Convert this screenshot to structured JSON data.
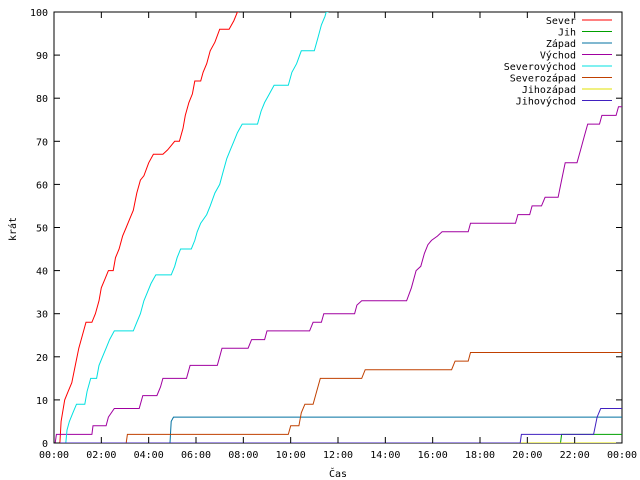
{
  "chart_data": {
    "type": "line",
    "xlabel": "Čas",
    "ylabel": "krát",
    "xlim": [
      0,
      24
    ],
    "ylim": [
      0,
      100
    ],
    "x_ticks": [
      "00:00",
      "02:00",
      "04:00",
      "06:00",
      "08:00",
      "10:00",
      "12:00",
      "14:00",
      "16:00",
      "18:00",
      "20:00",
      "22:00",
      "00:00"
    ],
    "y_ticks": [
      0,
      10,
      20,
      30,
      40,
      50,
      60,
      70,
      80,
      90,
      100
    ],
    "grid": false,
    "legend_position": "top-right",
    "series": [
      {
        "name": "Sever",
        "color": "#ff0000",
        "points": [
          [
            0,
            0
          ],
          [
            0.25,
            0
          ],
          [
            0.3,
            5
          ],
          [
            0.45,
            10
          ],
          [
            0.6,
            12
          ],
          [
            0.75,
            14
          ],
          [
            0.9,
            18
          ],
          [
            1.05,
            22
          ],
          [
            1.2,
            25
          ],
          [
            1.35,
            28
          ],
          [
            1.6,
            28
          ],
          [
            1.75,
            30
          ],
          [
            1.9,
            33
          ],
          [
            2.0,
            36
          ],
          [
            2.15,
            38
          ],
          [
            2.3,
            40
          ],
          [
            2.5,
            40
          ],
          [
            2.6,
            43
          ],
          [
            2.75,
            45
          ],
          [
            2.9,
            48
          ],
          [
            3.05,
            50
          ],
          [
            3.2,
            52
          ],
          [
            3.35,
            54
          ],
          [
            3.5,
            58
          ],
          [
            3.65,
            61
          ],
          [
            3.8,
            62
          ],
          [
            4.0,
            65
          ],
          [
            4.2,
            67
          ],
          [
            4.6,
            67
          ],
          [
            4.8,
            68
          ],
          [
            4.95,
            69
          ],
          [
            5.1,
            70
          ],
          [
            5.3,
            70
          ],
          [
            5.45,
            73
          ],
          [
            5.55,
            76
          ],
          [
            5.7,
            79
          ],
          [
            5.85,
            81
          ],
          [
            5.95,
            84
          ],
          [
            6.2,
            84
          ],
          [
            6.3,
            86
          ],
          [
            6.45,
            88
          ],
          [
            6.6,
            91
          ],
          [
            6.8,
            93
          ],
          [
            7.0,
            96
          ],
          [
            7.4,
            96
          ],
          [
            7.6,
            98
          ],
          [
            7.75,
            100
          ],
          [
            7.8,
            100
          ]
        ]
      },
      {
        "name": "Jih",
        "color": "#00a000",
        "points": [
          [
            0,
            0
          ],
          [
            21.4,
            0
          ],
          [
            21.45,
            2
          ],
          [
            24,
            2
          ]
        ]
      },
      {
        "name": "Západ",
        "color": "#0070a0",
        "points": [
          [
            0,
            0
          ],
          [
            4.9,
            0
          ],
          [
            4.95,
            5
          ],
          [
            5.05,
            6
          ],
          [
            24,
            6
          ]
        ]
      },
      {
        "name": "Východ",
        "color": "#a000a0",
        "points": [
          [
            0,
            0
          ],
          [
            0.05,
            0
          ],
          [
            0.1,
            2
          ],
          [
            1.6,
            2
          ],
          [
            1.65,
            4
          ],
          [
            2.2,
            4
          ],
          [
            2.3,
            6
          ],
          [
            2.55,
            8
          ],
          [
            3.6,
            8
          ],
          [
            3.75,
            11
          ],
          [
            4.35,
            11
          ],
          [
            4.5,
            13
          ],
          [
            4.6,
            15
          ],
          [
            5.6,
            15
          ],
          [
            5.75,
            18
          ],
          [
            6.9,
            18
          ],
          [
            7.0,
            20
          ],
          [
            7.1,
            22
          ],
          [
            8.2,
            22
          ],
          [
            8.35,
            24
          ],
          [
            8.9,
            24
          ],
          [
            9.0,
            26
          ],
          [
            10.8,
            26
          ],
          [
            10.95,
            28
          ],
          [
            11.3,
            28
          ],
          [
            11.4,
            30
          ],
          [
            12.7,
            30
          ],
          [
            12.8,
            32
          ],
          [
            13.0,
            33
          ],
          [
            14.9,
            33
          ],
          [
            15.1,
            36
          ],
          [
            15.3,
            40
          ],
          [
            15.5,
            41
          ],
          [
            15.65,
            44
          ],
          [
            15.8,
            46
          ],
          [
            15.95,
            47
          ],
          [
            16.2,
            48
          ],
          [
            16.4,
            49
          ],
          [
            17.5,
            49
          ],
          [
            17.6,
            51
          ],
          [
            19.5,
            51
          ],
          [
            19.6,
            53
          ],
          [
            20.1,
            53
          ],
          [
            20.2,
            55
          ],
          [
            20.6,
            55
          ],
          [
            20.75,
            57
          ],
          [
            21.3,
            57
          ],
          [
            21.45,
            61
          ],
          [
            21.6,
            65
          ],
          [
            22.1,
            65
          ],
          [
            22.25,
            68
          ],
          [
            22.4,
            71
          ],
          [
            22.55,
            74
          ],
          [
            23.05,
            74
          ],
          [
            23.15,
            76
          ],
          [
            23.75,
            76
          ],
          [
            23.85,
            78
          ],
          [
            24,
            78
          ]
        ]
      },
      {
        "name": "Severovýchod",
        "color": "#00e0e0",
        "points": [
          [
            0,
            0
          ],
          [
            0.5,
            0
          ],
          [
            0.55,
            3
          ],
          [
            0.65,
            5
          ],
          [
            0.8,
            7
          ],
          [
            0.95,
            9
          ],
          [
            1.3,
            9
          ],
          [
            1.4,
            12
          ],
          [
            1.55,
            15
          ],
          [
            1.8,
            15
          ],
          [
            1.9,
            18
          ],
          [
            2.05,
            20
          ],
          [
            2.2,
            22
          ],
          [
            2.35,
            24
          ],
          [
            2.55,
            26
          ],
          [
            3.35,
            26
          ],
          [
            3.5,
            28
          ],
          [
            3.65,
            30
          ],
          [
            3.8,
            33
          ],
          [
            3.95,
            35
          ],
          [
            4.1,
            37
          ],
          [
            4.3,
            39
          ],
          [
            4.95,
            39
          ],
          [
            5.1,
            41
          ],
          [
            5.2,
            43
          ],
          [
            5.35,
            45
          ],
          [
            5.8,
            45
          ],
          [
            5.95,
            47
          ],
          [
            6.05,
            49
          ],
          [
            6.2,
            51
          ],
          [
            6.45,
            53
          ],
          [
            6.6,
            55
          ],
          [
            6.8,
            58
          ],
          [
            7.0,
            60
          ],
          [
            7.15,
            63
          ],
          [
            7.3,
            66
          ],
          [
            7.45,
            68
          ],
          [
            7.6,
            70
          ],
          [
            7.75,
            72
          ],
          [
            7.95,
            74
          ],
          [
            8.6,
            74
          ],
          [
            8.75,
            77
          ],
          [
            8.9,
            79
          ],
          [
            9.1,
            81
          ],
          [
            9.3,
            83
          ],
          [
            9.9,
            83
          ],
          [
            10.05,
            86
          ],
          [
            10.25,
            88
          ],
          [
            10.45,
            91
          ],
          [
            11.0,
            91
          ],
          [
            11.15,
            94
          ],
          [
            11.3,
            97
          ],
          [
            11.45,
            99
          ],
          [
            11.5,
            100
          ],
          [
            11.6,
            100
          ]
        ]
      },
      {
        "name": "Severozápad",
        "color": "#c04000",
        "points": [
          [
            0,
            0
          ],
          [
            3.05,
            0
          ],
          [
            3.1,
            2
          ],
          [
            9.9,
            2
          ],
          [
            10.0,
            4
          ],
          [
            10.35,
            4
          ],
          [
            10.45,
            7
          ],
          [
            10.6,
            9
          ],
          [
            10.95,
            9
          ],
          [
            11.1,
            12
          ],
          [
            11.25,
            15
          ],
          [
            13.0,
            15
          ],
          [
            13.15,
            17
          ],
          [
            16.8,
            17
          ],
          [
            16.95,
            19
          ],
          [
            17.5,
            19
          ],
          [
            17.6,
            21
          ],
          [
            24,
            21
          ]
        ]
      },
      {
        "name": "Jihozápad",
        "color": "#e0e000",
        "points": [
          [
            0,
            0
          ],
          [
            24,
            0
          ]
        ]
      },
      {
        "name": "Jihovýchod",
        "color": "#4020c0",
        "points": [
          [
            0,
            0
          ],
          [
            19.7,
            0
          ],
          [
            19.75,
            2
          ],
          [
            22.8,
            2
          ],
          [
            22.95,
            6
          ],
          [
            23.1,
            8
          ],
          [
            24,
            8
          ]
        ]
      }
    ]
  }
}
